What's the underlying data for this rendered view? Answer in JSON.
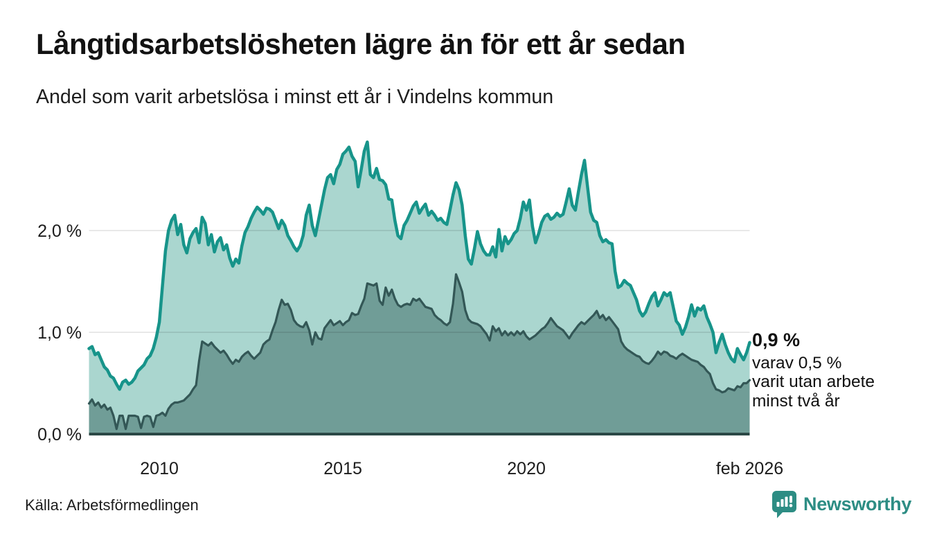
{
  "header": {
    "title": "Långtidsarbetslösheten lägre än för ett år sedan",
    "subtitle": "Andel som varit arbetslösa i minst ett år i Vindelns kommun"
  },
  "annotation": {
    "value_label": "0,9 %",
    "line1": "varav 0,5 %",
    "line2": "varit utan arbete",
    "line3": "minst två år"
  },
  "footer": {
    "source": "Källa: Arbetsförmedlingen",
    "brand": "Newsworthy"
  },
  "colors": {
    "accent_teal": "#17948a",
    "light_fill": "#aad6cf",
    "dark_line": "#335756",
    "dark_fill": "#709d97",
    "baseline": "#2b4846",
    "gridline": "rgba(0,0,0,0.12)",
    "brand_teal": "#2d8d84"
  },
  "chart_data": {
    "type": "area",
    "title": "Andel som varit arbetslösa i minst ett år i Vindelns kommun",
    "xlabel": "",
    "ylabel": "",
    "x_start": 2008.083,
    "x_end": 2026.083,
    "x_step_months": 1,
    "ylim": [
      0,
      3.0
    ],
    "grid": true,
    "legend_position": "none",
    "y_ticks": [
      {
        "label": "2,0 %",
        "value": 2.0
      },
      {
        "label": "1,0 %",
        "value": 1.0
      },
      {
        "label": "0,0 %",
        "value": 0.0
      }
    ],
    "x_ticks": [
      {
        "label": "2010",
        "value": 2010.0
      },
      {
        "label": "2015",
        "value": 2015.0
      },
      {
        "label": "2020",
        "value": 2020.0
      },
      {
        "label": "feb 2026",
        "value": 2026.083
      }
    ],
    "series": [
      {
        "name": "Andel arbetslösa minst ett år",
        "line_color": "#17948a",
        "fill_color": "#aad6cf",
        "line_width": 4.5,
        "end_value_label": "0,9 %",
        "values": [
          0.84,
          0.86,
          0.78,
          0.8,
          0.73,
          0.66,
          0.63,
          0.57,
          0.55,
          0.49,
          0.44,
          0.51,
          0.53,
          0.49,
          0.51,
          0.55,
          0.62,
          0.65,
          0.68,
          0.74,
          0.77,
          0.84,
          0.95,
          1.1,
          1.45,
          1.8,
          2.0,
          2.1,
          2.15,
          1.96,
          2.06,
          1.86,
          1.78,
          1.92,
          1.98,
          2.02,
          1.88,
          2.13,
          2.07,
          1.86,
          1.96,
          1.79,
          1.89,
          1.93,
          1.81,
          1.86,
          1.73,
          1.65,
          1.72,
          1.68,
          1.85,
          1.98,
          2.04,
          2.12,
          2.18,
          2.23,
          2.2,
          2.16,
          2.22,
          2.21,
          2.18,
          2.1,
          2.02,
          2.1,
          2.05,
          1.95,
          1.9,
          1.84,
          1.8,
          1.85,
          1.95,
          2.15,
          2.25,
          2.05,
          1.95,
          2.1,
          2.25,
          2.4,
          2.52,
          2.55,
          2.46,
          2.6,
          2.65,
          2.75,
          2.78,
          2.82,
          2.73,
          2.68,
          2.43,
          2.6,
          2.78,
          2.87,
          2.55,
          2.52,
          2.61,
          2.5,
          2.49,
          2.45,
          2.31,
          2.3,
          2.1,
          1.95,
          1.92,
          2.05,
          2.1,
          2.17,
          2.24,
          2.28,
          2.17,
          2.22,
          2.26,
          2.15,
          2.19,
          2.15,
          2.1,
          2.12,
          2.08,
          2.06,
          2.2,
          2.35,
          2.47,
          2.4,
          2.25,
          1.95,
          1.72,
          1.67,
          1.82,
          1.99,
          1.87,
          1.8,
          1.76,
          1.76,
          1.84,
          1.74,
          2.01,
          1.8,
          1.94,
          1.87,
          1.91,
          1.97,
          2.0,
          2.12,
          2.28,
          2.2,
          2.3,
          2.04,
          1.88,
          1.97,
          2.08,
          2.14,
          2.16,
          2.11,
          2.13,
          2.17,
          2.14,
          2.16,
          2.28,
          2.41,
          2.25,
          2.2,
          2.38,
          2.55,
          2.69,
          2.43,
          2.18,
          2.1,
          2.08,
          1.95,
          1.89,
          1.91,
          1.88,
          1.87,
          1.6,
          1.44,
          1.46,
          1.51,
          1.48,
          1.46,
          1.39,
          1.32,
          1.21,
          1.16,
          1.2,
          1.28,
          1.35,
          1.39,
          1.26,
          1.32,
          1.39,
          1.36,
          1.39,
          1.25,
          1.11,
          1.07,
          0.98,
          1.05,
          1.15,
          1.27,
          1.16,
          1.24,
          1.22,
          1.26,
          1.15,
          1.08,
          1.0,
          0.8,
          0.9,
          0.98,
          0.88,
          0.8,
          0.74,
          0.71,
          0.84,
          0.78,
          0.73,
          0.8,
          0.9
        ]
      },
      {
        "name": "varav utan arbete minst två år",
        "line_color": "#335756",
        "fill_color": "#709d97",
        "line_width": 3.2,
        "end_value_label": "0,5 %",
        "values": [
          0.3,
          0.34,
          0.28,
          0.31,
          0.26,
          0.29,
          0.24,
          0.26,
          0.18,
          0.05,
          0.18,
          0.18,
          0.05,
          0.18,
          0.18,
          0.18,
          0.17,
          0.06,
          0.17,
          0.18,
          0.17,
          0.07,
          0.18,
          0.19,
          0.21,
          0.18,
          0.25,
          0.29,
          0.31,
          0.31,
          0.32,
          0.33,
          0.36,
          0.39,
          0.44,
          0.48,
          0.72,
          0.91,
          0.89,
          0.87,
          0.9,
          0.86,
          0.83,
          0.8,
          0.82,
          0.78,
          0.73,
          0.69,
          0.73,
          0.71,
          0.76,
          0.79,
          0.81,
          0.77,
          0.74,
          0.77,
          0.8,
          0.88,
          0.91,
          0.93,
          1.02,
          1.1,
          1.22,
          1.32,
          1.27,
          1.28,
          1.22,
          1.12,
          1.08,
          1.06,
          1.05,
          1.1,
          1.02,
          0.88,
          1.0,
          0.94,
          0.93,
          1.04,
          1.08,
          1.12,
          1.07,
          1.09,
          1.11,
          1.07,
          1.1,
          1.12,
          1.19,
          1.17,
          1.18,
          1.26,
          1.33,
          1.48,
          1.47,
          1.46,
          1.48,
          1.31,
          1.27,
          1.44,
          1.36,
          1.42,
          1.33,
          1.27,
          1.25,
          1.27,
          1.28,
          1.27,
          1.33,
          1.31,
          1.33,
          1.29,
          1.25,
          1.24,
          1.23,
          1.17,
          1.14,
          1.12,
          1.09,
          1.07,
          1.1,
          1.28,
          1.57,
          1.49,
          1.4,
          1.22,
          1.13,
          1.1,
          1.09,
          1.08,
          1.06,
          1.02,
          0.98,
          0.92,
          1.06,
          1.01,
          1.04,
          0.97,
          1.01,
          0.97,
          1.0,
          0.97,
          1.01,
          0.98,
          1.01,
          0.96,
          0.93,
          0.95,
          0.97,
          1.0,
          1.03,
          1.05,
          1.09,
          1.14,
          1.1,
          1.06,
          1.04,
          1.02,
          0.98,
          0.94,
          0.99,
          1.03,
          1.07,
          1.1,
          1.08,
          1.11,
          1.14,
          1.17,
          1.21,
          1.14,
          1.17,
          1.12,
          1.15,
          1.11,
          1.07,
          1.03,
          0.91,
          0.86,
          0.83,
          0.81,
          0.79,
          0.77,
          0.76,
          0.72,
          0.7,
          0.69,
          0.72,
          0.76,
          0.81,
          0.78,
          0.81,
          0.8,
          0.77,
          0.76,
          0.74,
          0.77,
          0.79,
          0.77,
          0.75,
          0.73,
          0.72,
          0.71,
          0.68,
          0.66,
          0.62,
          0.59,
          0.5,
          0.44,
          0.43,
          0.41,
          0.42,
          0.45,
          0.44,
          0.43,
          0.47,
          0.46,
          0.5,
          0.5,
          0.53
        ]
      }
    ]
  }
}
